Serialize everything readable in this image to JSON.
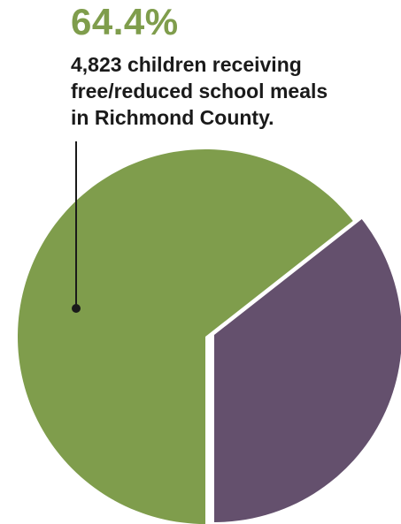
{
  "chart_data": {
    "type": "pie",
    "title": "",
    "annotation": {
      "value_label": "64.4%",
      "lines": [
        "4,823 children receiving",
        "free/reduced school meals",
        "in Richmond County."
      ]
    },
    "slices": [
      {
        "value": 64.4,
        "color": "#7f9d4c"
      },
      {
        "value": 35.6,
        "color": "#64506d"
      }
    ],
    "highlight_color": "#7f9d4c",
    "leader_color": "#1a1a1a"
  }
}
